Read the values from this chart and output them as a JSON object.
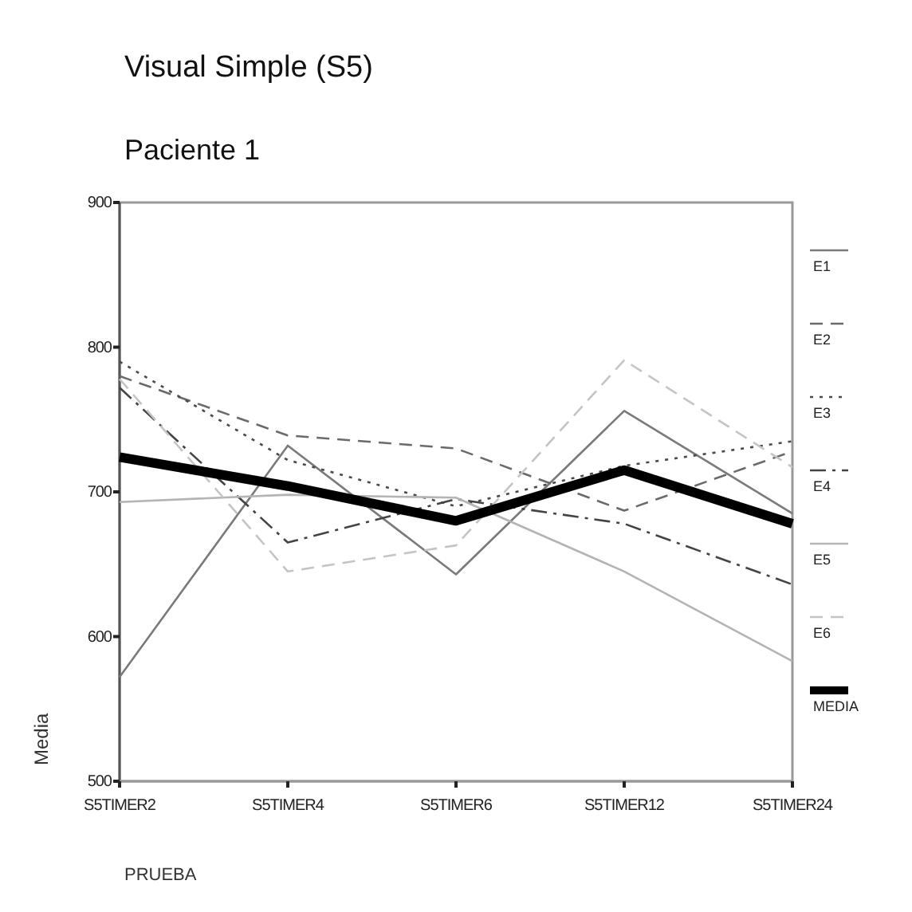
{
  "chart_data": {
    "type": "line",
    "title": "Visual Simple (S5)",
    "subtitle": "Paciente 1",
    "xlabel": "PRUEBA",
    "ylabel": "Media",
    "categories": [
      "S5TIMER2",
      "S5TIMER4",
      "S5TIMER6",
      "S5TIMER12",
      "S5TIMER24"
    ],
    "ylim": [
      500,
      900
    ],
    "yticks": [
      500,
      600,
      700,
      800,
      900
    ],
    "legend": "right",
    "grid": false,
    "series": [
      {
        "name": "E1",
        "color": "#7a7a7a",
        "line_style": "solid",
        "values": [
          572,
          732,
          643,
          756,
          685
        ]
      },
      {
        "name": "E2",
        "color": "#6a6a6a",
        "line_style": "dashed",
        "values": [
          780,
          739,
          730,
          687,
          728
        ]
      },
      {
        "name": "E3",
        "color": "#4a4a4a",
        "line_style": "dotted",
        "values": [
          790,
          722,
          690,
          718,
          735
        ]
      },
      {
        "name": "E4",
        "color": "#444444",
        "line_style": "dashdot",
        "values": [
          772,
          665,
          695,
          678,
          636
        ]
      },
      {
        "name": "E5",
        "color": "#b4b4b4",
        "line_style": "solid",
        "values": [
          693,
          698,
          696,
          645,
          583
        ]
      },
      {
        "name": "E6",
        "color": "#c4c4c4",
        "line_style": "dashed",
        "values": [
          778,
          645,
          663,
          791,
          717
        ]
      },
      {
        "name": "MEDIA",
        "color": "#000000",
        "line_style": "solid",
        "values": [
          724,
          704,
          680,
          715,
          678
        ]
      }
    ]
  }
}
